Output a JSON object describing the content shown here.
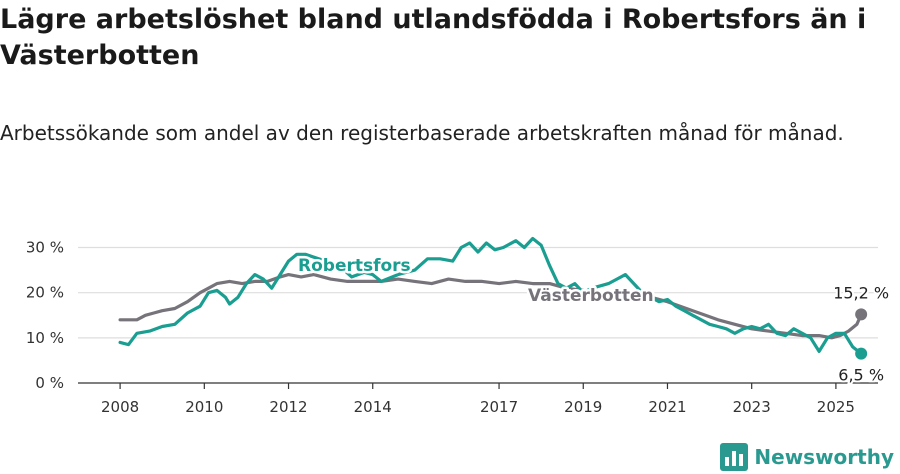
{
  "title": "Lägre arbetslöshet bland utlandsfödda i Robertsfors än i Västerbotten",
  "subtitle": "Arbetssökande som andel av den registerbaserade arbetskraften månad för månad.",
  "brand": {
    "name": "Newsworthy",
    "icon": "newsworthy-logo-icon"
  },
  "colors": {
    "robertsfors": "#1a9e91",
    "vasterbotten": "#76737a",
    "grid": "#dedede",
    "axis": "#333333"
  },
  "chart_data": {
    "type": "line",
    "ylim": [
      0,
      32
    ],
    "xlim": [
      2007.0,
      2026.0
    ],
    "yticks": [
      0,
      10,
      20,
      30
    ],
    "ytick_labels": [
      "0 %",
      "10 %",
      "20 %",
      "30 %"
    ],
    "xticks": [
      2008,
      2010,
      2012,
      2014,
      2017,
      2019,
      2021,
      2023,
      2025
    ],
    "xtick_labels": [
      "2008",
      "2010",
      "2012",
      "2014",
      "2017",
      "2019",
      "2021",
      "2023",
      "2025"
    ],
    "grid": true,
    "legend": "inline labels",
    "series": [
      {
        "name": "Robertsfors",
        "end_label": "6,5 %",
        "points": [
          [
            2008.0,
            9
          ],
          [
            2008.2,
            8.5
          ],
          [
            2008.4,
            11
          ],
          [
            2008.7,
            11.5
          ],
          [
            2009.0,
            12.5
          ],
          [
            2009.3,
            13
          ],
          [
            2009.6,
            15.5
          ],
          [
            2009.9,
            17
          ],
          [
            2010.1,
            20
          ],
          [
            2010.3,
            20.5
          ],
          [
            2010.5,
            19
          ],
          [
            2010.6,
            17.5
          ],
          [
            2010.8,
            19
          ],
          [
            2011.0,
            22
          ],
          [
            2011.2,
            24
          ],
          [
            2011.4,
            23
          ],
          [
            2011.6,
            21
          ],
          [
            2011.8,
            24
          ],
          [
            2012.0,
            27
          ],
          [
            2012.2,
            28.5
          ],
          [
            2012.4,
            28.5
          ],
          [
            2013.2,
            26
          ],
          [
            2013.5,
            23.5
          ],
          [
            2013.8,
            24.5
          ],
          [
            2014.0,
            24
          ],
          [
            2014.2,
            22.5
          ],
          [
            2014.6,
            24
          ],
          [
            2015.0,
            25
          ],
          [
            2015.3,
            27.5
          ],
          [
            2015.6,
            27.5
          ],
          [
            2015.9,
            27
          ],
          [
            2016.1,
            30
          ],
          [
            2016.3,
            31
          ],
          [
            2016.5,
            29
          ],
          [
            2016.7,
            31
          ],
          [
            2016.9,
            29.5
          ],
          [
            2017.1,
            30
          ],
          [
            2017.4,
            31.5
          ],
          [
            2017.6,
            30
          ],
          [
            2017.8,
            32
          ],
          [
            2018.0,
            30.5
          ],
          [
            2018.2,
            26
          ],
          [
            2018.4,
            22
          ],
          [
            2018.6,
            21
          ],
          [
            2018.8,
            22
          ],
          [
            2019.0,
            20
          ],
          [
            2019.2,
            21
          ],
          [
            2019.4,
            21.5
          ],
          [
            2019.6,
            22
          ],
          [
            2019.8,
            23
          ],
          [
            2020.0,
            24
          ],
          [
            2020.2,
            22
          ],
          [
            2020.4,
            20
          ],
          [
            2020.6,
            19
          ],
          [
            2020.8,
            18
          ],
          [
            2021.0,
            18.5
          ],
          [
            2021.2,
            17
          ],
          [
            2021.4,
            16
          ],
          [
            2021.6,
            15
          ],
          [
            2021.8,
            14
          ],
          [
            2022.0,
            13
          ],
          [
            2022.2,
            12.5
          ],
          [
            2022.4,
            12
          ],
          [
            2022.6,
            11
          ],
          [
            2022.8,
            12
          ],
          [
            2023.0,
            12.5
          ],
          [
            2023.2,
            12
          ],
          [
            2023.4,
            13
          ],
          [
            2023.6,
            11
          ],
          [
            2023.8,
            10.5
          ],
          [
            2024.0,
            12
          ],
          [
            2024.2,
            11
          ],
          [
            2024.4,
            10
          ],
          [
            2024.6,
            7
          ],
          [
            2024.8,
            10
          ],
          [
            2025.0,
            11
          ],
          [
            2025.2,
            11
          ],
          [
            2025.4,
            8
          ],
          [
            2025.6,
            6.5
          ]
        ]
      },
      {
        "name": "Västerbotten",
        "end_label": "15,2 %",
        "points": [
          [
            2008.0,
            14
          ],
          [
            2008.2,
            14
          ],
          [
            2008.4,
            14
          ],
          [
            2008.6,
            15
          ],
          [
            2008.8,
            15.5
          ],
          [
            2009.0,
            16
          ],
          [
            2009.3,
            16.5
          ],
          [
            2009.6,
            18
          ],
          [
            2009.9,
            20
          ],
          [
            2010.1,
            21
          ],
          [
            2010.3,
            22
          ],
          [
            2010.6,
            22.5
          ],
          [
            2010.9,
            22
          ],
          [
            2011.2,
            22.5
          ],
          [
            2011.5,
            22.5
          ],
          [
            2011.8,
            23.5
          ],
          [
            2012.0,
            24
          ],
          [
            2012.3,
            23.5
          ],
          [
            2012.6,
            24
          ],
          [
            2013.0,
            23
          ],
          [
            2013.4,
            22.5
          ],
          [
            2013.8,
            22.5
          ],
          [
            2014.2,
            22.5
          ],
          [
            2014.6,
            23
          ],
          [
            2015.0,
            22.5
          ],
          [
            2015.4,
            22
          ],
          [
            2015.8,
            23
          ],
          [
            2016.2,
            22.5
          ],
          [
            2016.6,
            22.5
          ],
          [
            2017.0,
            22
          ],
          [
            2017.4,
            22.5
          ],
          [
            2017.8,
            22
          ],
          [
            2018.2,
            22
          ],
          [
            2018.6,
            21
          ],
          [
            2019.0,
            20.5
          ],
          [
            2019.4,
            20
          ],
          [
            2019.8,
            19.5
          ],
          [
            2020.2,
            20
          ],
          [
            2020.6,
            19
          ],
          [
            2021.0,
            18
          ],
          [
            2021.3,
            17
          ],
          [
            2021.6,
            16
          ],
          [
            2021.9,
            15
          ],
          [
            2022.2,
            14
          ],
          [
            2022.6,
            13
          ],
          [
            2023.0,
            12
          ],
          [
            2023.4,
            11.5
          ],
          [
            2023.8,
            11
          ],
          [
            2024.2,
            10.5
          ],
          [
            2024.6,
            10.5
          ],
          [
            2024.9,
            10
          ],
          [
            2025.1,
            10.5
          ],
          [
            2025.3,
            11.5
          ],
          [
            2025.5,
            13
          ],
          [
            2025.6,
            15.2
          ]
        ]
      }
    ]
  }
}
